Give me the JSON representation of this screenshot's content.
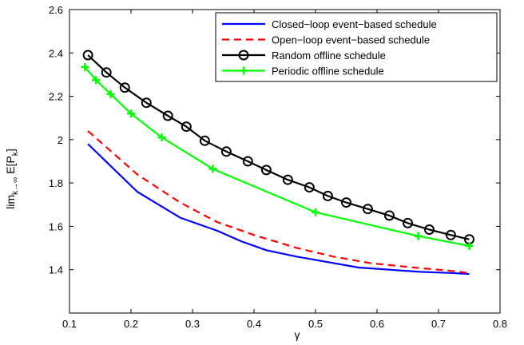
{
  "chart_data": {
    "type": "line",
    "xlabel": "γ",
    "ylabel": "lim_{k→∞} E[P_k^-]",
    "ylabel_main": "lim",
    "ylabel_sub": "k→∞",
    "ylabel_tail": "E[P",
    "ylabel_k": "k",
    "ylabel_end": "]",
    "xlim": [
      0.1,
      0.8
    ],
    "ylim": [
      1.2,
      2.6
    ],
    "xticks": [
      0.1,
      0.2,
      0.3,
      0.4,
      0.5,
      0.6,
      0.7,
      0.8
    ],
    "yticks": [
      1.4,
      1.6,
      1.8,
      2.0,
      2.2,
      2.4,
      2.6
    ],
    "xtick_labels": [
      "0.1",
      "0.2",
      "0.3",
      "0.4",
      "0.5",
      "0.6",
      "0.7",
      "0.8"
    ],
    "ytick_labels": [
      "1.4",
      "1.6",
      "1.8",
      "2",
      "2.2",
      "2.4",
      "2.6"
    ],
    "grid": false,
    "legend_position": "top-right",
    "series": [
      {
        "name": "Closed−loop event−based schedule",
        "color": "#0000ff",
        "style": "solid",
        "marker": "none",
        "x": [
          0.13,
          0.21,
          0.28,
          0.34,
          0.38,
          0.42,
          0.47,
          0.52,
          0.57,
          0.62,
          0.67,
          0.72,
          0.75
        ],
        "y": [
          1.98,
          1.76,
          1.64,
          1.58,
          1.53,
          1.49,
          1.46,
          1.435,
          1.41,
          1.4,
          1.39,
          1.385,
          1.38
        ]
      },
      {
        "name": "Open−loop event−based schedule",
        "color": "#ff0000",
        "style": "dashed",
        "marker": "none",
        "x": [
          0.13,
          0.21,
          0.28,
          0.34,
          0.4,
          0.47,
          0.53,
          0.59,
          0.66,
          0.72,
          0.75
        ],
        "y": [
          2.04,
          1.84,
          1.71,
          1.62,
          1.56,
          1.5,
          1.46,
          1.43,
          1.41,
          1.395,
          1.385
        ]
      },
      {
        "name": "Random offline schedule",
        "color": "#000000",
        "style": "solid",
        "marker": "circle",
        "x": [
          0.13,
          0.16,
          0.19,
          0.225,
          0.26,
          0.29,
          0.32,
          0.355,
          0.39,
          0.42,
          0.455,
          0.49,
          0.52,
          0.55,
          0.585,
          0.62,
          0.65,
          0.685,
          0.72,
          0.75
        ],
        "y": [
          2.39,
          2.31,
          2.24,
          2.17,
          2.11,
          2.06,
          1.995,
          1.945,
          1.9,
          1.86,
          1.815,
          1.78,
          1.74,
          1.71,
          1.68,
          1.65,
          1.615,
          1.585,
          1.56,
          1.54
        ]
      },
      {
        "name": "Periodic offline schedule",
        "color": "#00ff00",
        "style": "solid",
        "marker": "plus",
        "x": [
          0.125,
          0.143,
          0.167,
          0.2,
          0.25,
          0.333,
          0.5,
          0.667,
          0.75
        ],
        "y": [
          2.335,
          2.275,
          2.21,
          2.12,
          2.01,
          1.865,
          1.665,
          1.555,
          1.51
        ]
      }
    ]
  }
}
